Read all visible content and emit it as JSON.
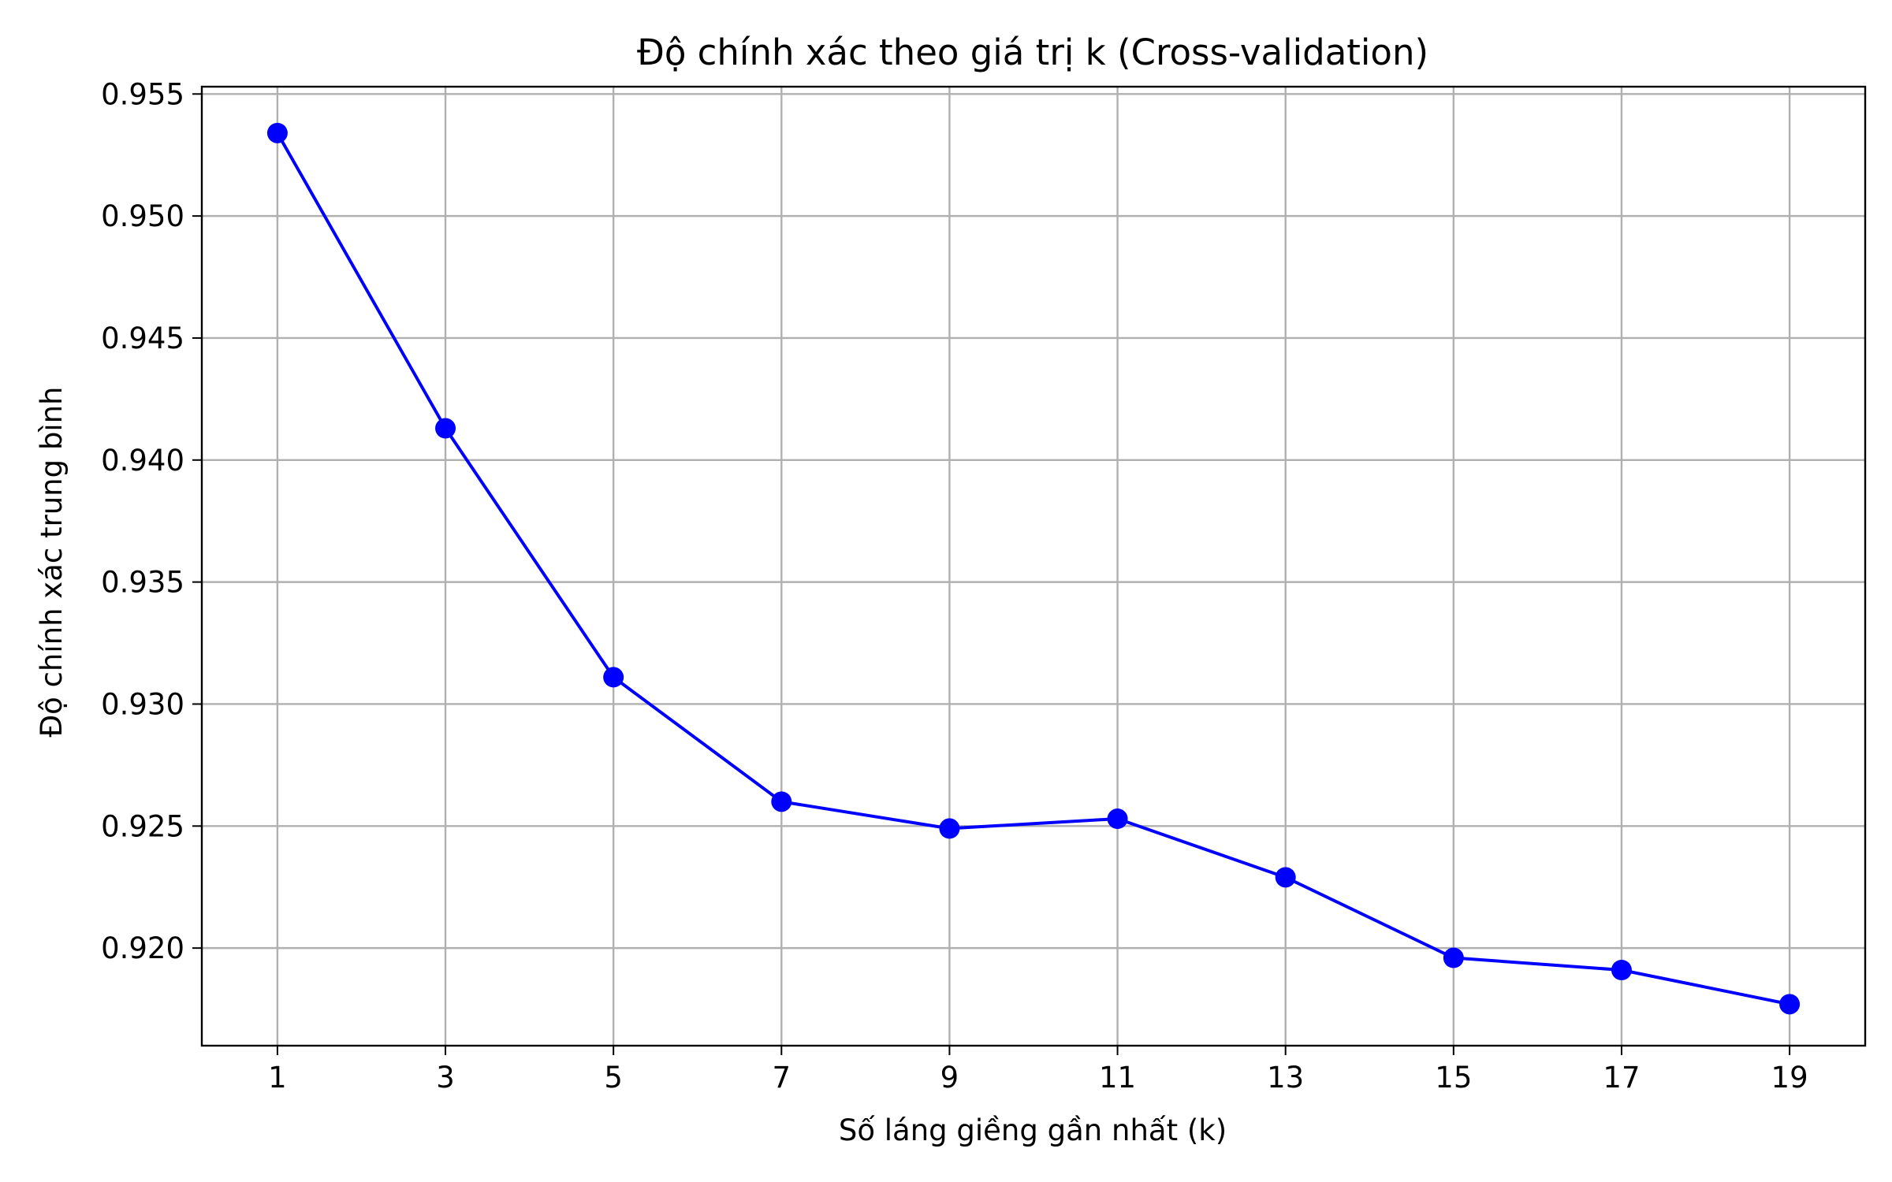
{
  "chart_data": {
    "type": "line",
    "title": "Độ chính xác theo giá trị k (Cross-validation)",
    "xlabel": "Số láng giềng gần nhất (k)",
    "ylabel": "Độ chính xác trung bình",
    "x": [
      1,
      3,
      5,
      7,
      9,
      11,
      13,
      15,
      17,
      19
    ],
    "series": [
      {
        "values": [
          0.9534,
          0.9413,
          0.9311,
          0.926,
          0.9249,
          0.9253,
          0.9229,
          0.9196,
          0.9191,
          0.9177
        ],
        "color": "#0000ff",
        "marker": "circle"
      }
    ],
    "xticks": [
      "1",
      "3",
      "5",
      "7",
      "9",
      "11",
      "13",
      "15",
      "17",
      "19"
    ],
    "yticks": [
      "0.920",
      "0.925",
      "0.930",
      "0.935",
      "0.940",
      "0.945",
      "0.950",
      "0.955"
    ],
    "ytick_values": [
      0.92,
      0.925,
      0.93,
      0.935,
      0.94,
      0.945,
      0.95,
      0.955
    ],
    "xlim": [
      0.1,
      19.9
    ],
    "ylim": [
      0.916,
      0.9553
    ],
    "grid": true,
    "legend": "none"
  }
}
